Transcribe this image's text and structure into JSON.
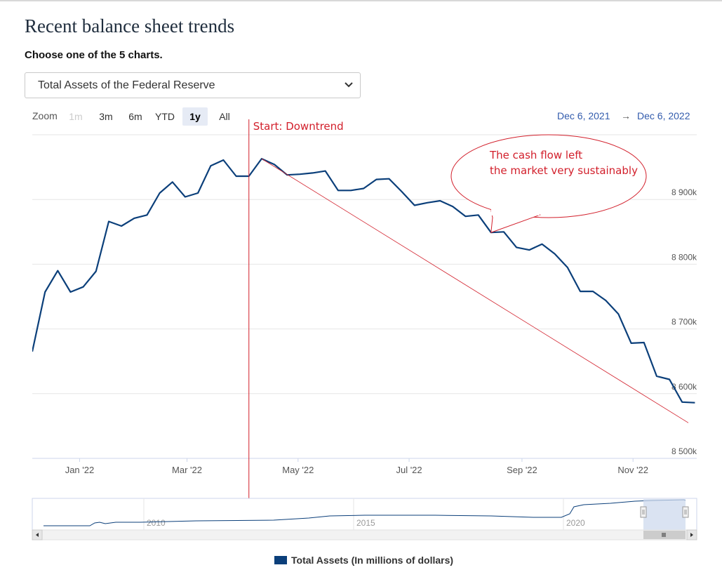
{
  "page": {
    "title": "Recent balance sheet trends",
    "subtitle": "Choose one of the 5 charts.",
    "select_value": "Total Assets of the Federal Reserve"
  },
  "zoom": {
    "label": "Zoom",
    "buttons": [
      {
        "label": "1m",
        "state": "disabled"
      },
      {
        "label": "3m",
        "state": "normal"
      },
      {
        "label": "6m",
        "state": "normal"
      },
      {
        "label": "YTD",
        "state": "normal"
      },
      {
        "label": "1y",
        "state": "active"
      },
      {
        "label": "All",
        "state": "normal"
      }
    ]
  },
  "range": {
    "from": "Dec 6, 2021",
    "arrow": "→",
    "to": "Dec 6, 2022"
  },
  "colors": {
    "series": "#0b3f7a",
    "annotation": "#d21f2b",
    "navigator_mask": "#cdd9ee"
  },
  "chart_data": {
    "type": "line",
    "title": "",
    "xlabel": "",
    "ylabel": "",
    "x_ticks": [
      "Jan '22",
      "Mar '22",
      "May '22",
      "Jul '22",
      "Sep '22",
      "Nov '22"
    ],
    "y_ticks": [
      "8 500k",
      "8 600k",
      "8 700k",
      "8 800k",
      "8 900k"
    ],
    "y_tick_values": [
      8500000,
      8600000,
      8700000,
      8800000,
      8900000
    ],
    "ylim": [
      8500000,
      9000000
    ],
    "xlim": [
      "2021-12-06",
      "2022-12-06"
    ],
    "grid": true,
    "legend_position": "bottom-center",
    "series": [
      {
        "name": "Total Assets (In millions of dollars)",
        "x": [
          "2021-12-06",
          "2021-12-13",
          "2021-12-20",
          "2021-12-27",
          "2022-01-03",
          "2022-01-10",
          "2022-01-17",
          "2022-01-24",
          "2022-01-31",
          "2022-02-07",
          "2022-02-14",
          "2022-02-21",
          "2022-02-28",
          "2022-03-07",
          "2022-03-14",
          "2022-03-21",
          "2022-03-28",
          "2022-04-04",
          "2022-04-11",
          "2022-04-18",
          "2022-04-25",
          "2022-05-02",
          "2022-05-09",
          "2022-05-16",
          "2022-05-23",
          "2022-05-30",
          "2022-06-06",
          "2022-06-13",
          "2022-06-20",
          "2022-06-27",
          "2022-07-04",
          "2022-07-11",
          "2022-07-18",
          "2022-07-25",
          "2022-08-01",
          "2022-08-08",
          "2022-08-15",
          "2022-08-22",
          "2022-08-29",
          "2022-09-05",
          "2022-09-12",
          "2022-09-19",
          "2022-09-26",
          "2022-10-03",
          "2022-10-10",
          "2022-10-17",
          "2022-10-24",
          "2022-10-31",
          "2022-11-07",
          "2022-11-14",
          "2022-11-21",
          "2022-11-28",
          "2022-12-05"
        ],
        "values": [
          8665000,
          8757000,
          8790000,
          8757000,
          8765000,
          8789000,
          8866000,
          8859000,
          8871000,
          8876000,
          8910000,
          8927000,
          8904000,
          8910000,
          8952000,
          8961000,
          8936000,
          8936000,
          8963000,
          8954000,
          8938000,
          8939000,
          8941000,
          8944000,
          8914000,
          8914000,
          8917000,
          8931000,
          8932000,
          8912000,
          8891000,
          8895000,
          8898000,
          8889000,
          8874000,
          8876000,
          8849000,
          8850000,
          8826000,
          8822000,
          8831000,
          8816000,
          8795000,
          8758000,
          8758000,
          8744000,
          8723000,
          8678000,
          8679000,
          8627000,
          8622000,
          8587000,
          8586000
        ]
      }
    ],
    "annotations": [
      {
        "text": "Start: Downtrend",
        "type": "vertical-line",
        "x": "2022-04-04"
      },
      {
        "text": "The cash flow left the market very sustainably",
        "type": "callout",
        "x": "2022-08-15",
        "y": 8849000
      },
      {
        "text": "",
        "type": "trend-line",
        "from": {
          "x": "2022-04-11",
          "y": 8963000
        },
        "to": {
          "x": "2022-12-06",
          "y": 8555000
        }
      }
    ],
    "navigator": {
      "labels": [
        "2010",
        "2015",
        "2020"
      ]
    }
  },
  "legend": {
    "label": "Total Assets (In millions of dollars)"
  }
}
